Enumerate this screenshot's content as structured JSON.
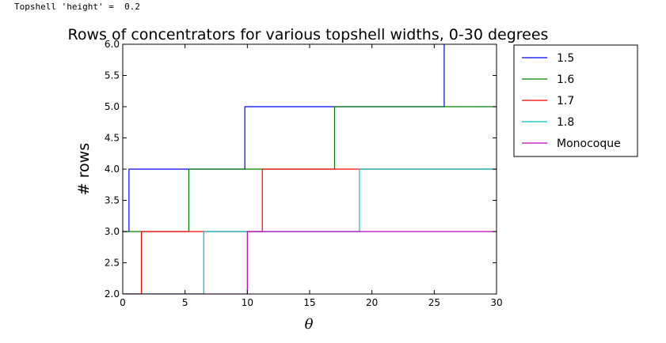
{
  "output_text": "Topshell 'height' =  0.2",
  "chart_data": {
    "type": "line",
    "title": "Rows of concentrators for various topshell widths, 0-30 degrees",
    "xlabel": "θ",
    "ylabel": "# rows",
    "xlim": [
      0,
      30
    ],
    "ylim": [
      2.0,
      6.0
    ],
    "x_ticks": [
      "0",
      "5",
      "10",
      "15",
      "20",
      "25",
      "30"
    ],
    "y_ticks": [
      "2.0",
      "2.5",
      "3.0",
      "3.5",
      "4.0",
      "4.5",
      "5.0",
      "5.5",
      "6.0"
    ],
    "grid": false,
    "legend_position": "outside-right",
    "series": [
      {
        "name": "1.5",
        "color": "#0000ff",
        "points": [
          [
            0,
            3
          ],
          [
            0.5,
            3
          ],
          [
            0.5,
            4
          ],
          [
            9.8,
            4
          ],
          [
            9.8,
            5
          ],
          [
            25.8,
            5
          ],
          [
            25.8,
            6
          ]
        ]
      },
      {
        "name": "1.6",
        "color": "#008000",
        "points": [
          [
            0,
            3
          ],
          [
            5.3,
            3
          ],
          [
            5.3,
            4
          ],
          [
            17,
            4
          ],
          [
            17,
            5
          ],
          [
            30,
            5
          ]
        ]
      },
      {
        "name": "1.7",
        "color": "#ff0000",
        "points": [
          [
            0,
            2
          ],
          [
            1.5,
            2
          ],
          [
            1.5,
            3
          ],
          [
            11.2,
            3
          ],
          [
            11.2,
            4
          ],
          [
            30,
            4
          ]
        ]
      },
      {
        "name": "1.8",
        "color": "#00bfbf",
        "points": [
          [
            0,
            2
          ],
          [
            6.5,
            2
          ],
          [
            6.5,
            3
          ],
          [
            19,
            3
          ],
          [
            19,
            4
          ],
          [
            30,
            4
          ]
        ]
      },
      {
        "name": "Monocoque",
        "color": "#bf00bf",
        "points": [
          [
            0,
            2
          ],
          [
            10,
            2
          ],
          [
            10,
            3
          ],
          [
            30,
            3
          ]
        ]
      }
    ]
  }
}
